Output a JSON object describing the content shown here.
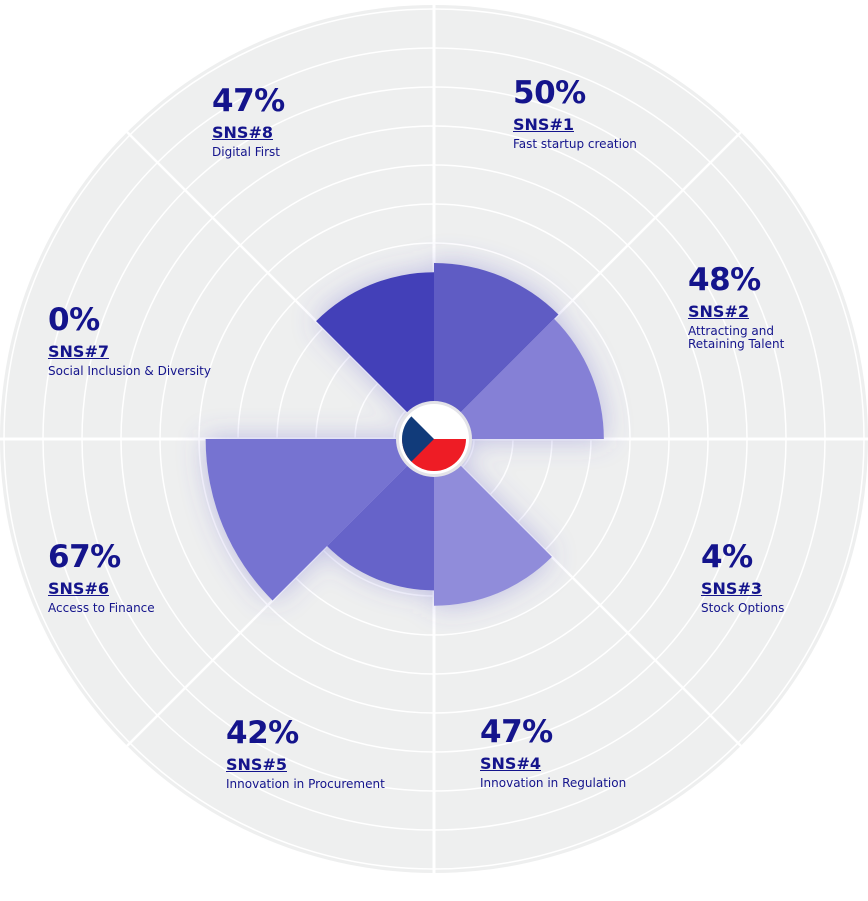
{
  "chart_data": {
    "type": "polar-area",
    "rlim": [
      0,
      100
    ],
    "segments": [
      {
        "code": "SNS#1",
        "name": "Fast startup creation",
        "value": 50,
        "value_label": "50%",
        "color": "#5f5cc4"
      },
      {
        "code": "SNS#2",
        "name": "Attracting and Retaining Talent",
        "value": 48,
        "value_label": "48%",
        "color": "#8580d6"
      },
      {
        "code": "SNS#3",
        "name": "Stock Options",
        "value": 4,
        "value_label": "4%",
        "color": "#6b67cc"
      },
      {
        "code": "SNS#4",
        "name": "Innovation in Regulation",
        "value": 47,
        "value_label": "47%",
        "color": "#908cda"
      },
      {
        "code": "SNS#5",
        "name": "Innovation in Procurement",
        "value": 42,
        "value_label": "42%",
        "color": "#6663c9"
      },
      {
        "code": "SNS#6",
        "name": "Access to Finance",
        "value": 67,
        "value_label": "67%",
        "color": "#7673d1"
      },
      {
        "code": "SNS#7",
        "name": "Social Inclusion & Diversity",
        "value": 0,
        "value_label": "0%",
        "color": "#6b67cc"
      },
      {
        "code": "SNS#8",
        "name": "Digital First",
        "value": 47,
        "value_label": "47%",
        "color": "#4340b8"
      }
    ],
    "grid": true,
    "center_icon": "czech-flag-icon"
  },
  "colors": {
    "background_disc": "#eeefef",
    "grid_line": "#ffffff",
    "label_text": "#14148c"
  }
}
